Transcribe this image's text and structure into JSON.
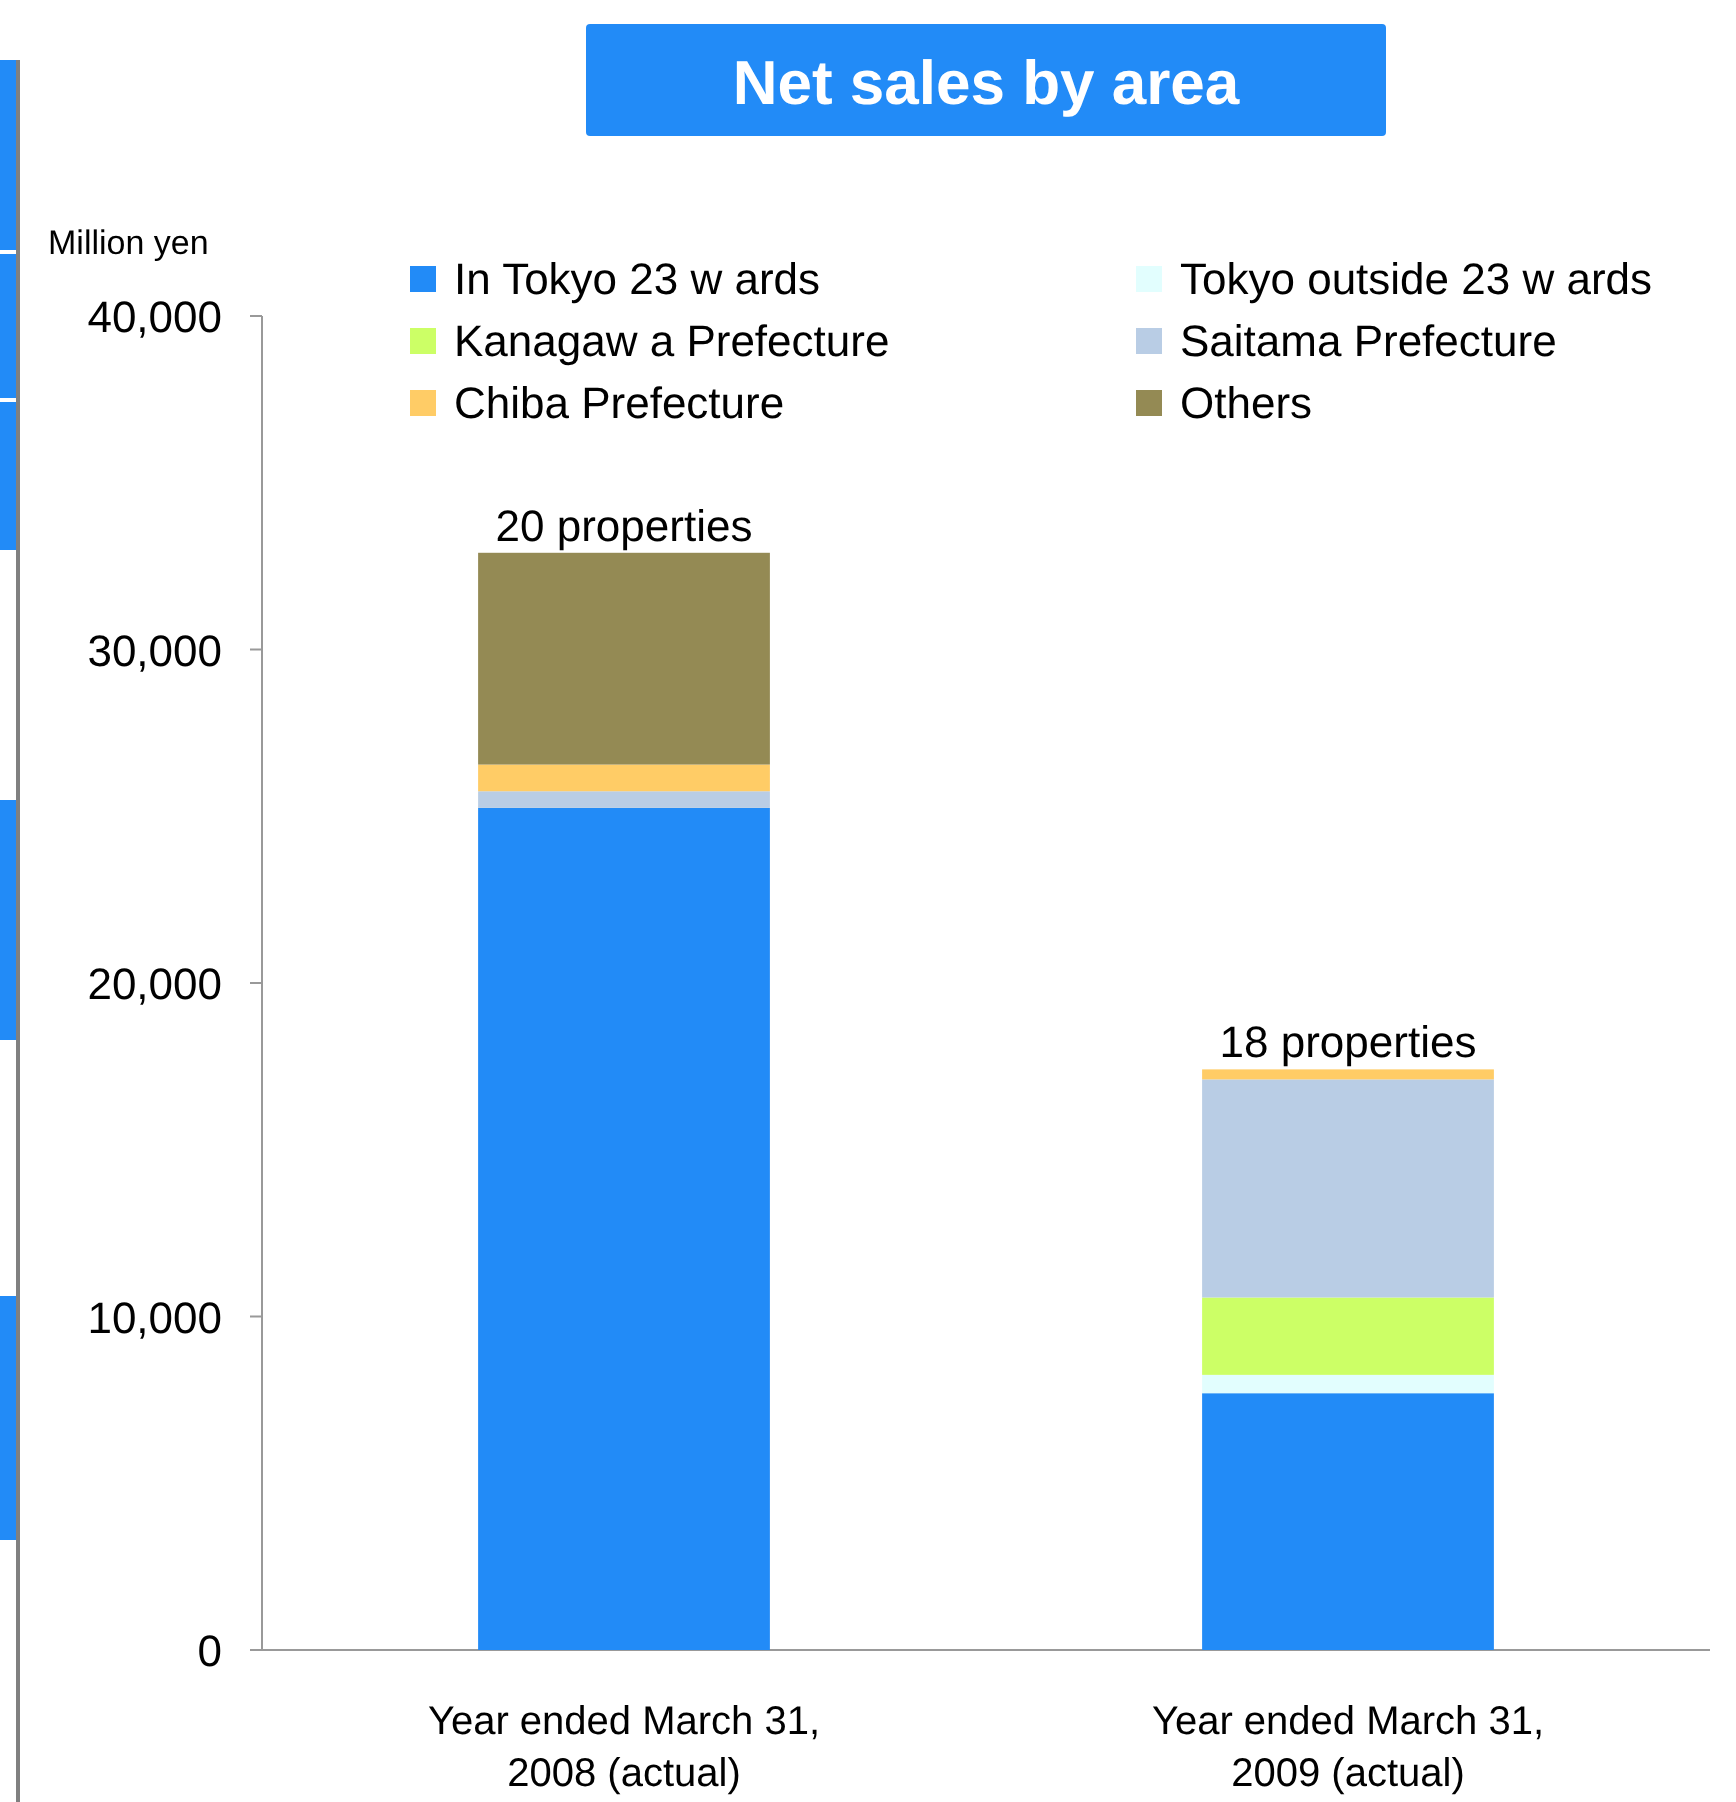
{
  "chart_data": {
    "type": "bar",
    "title": "Net sales by area",
    "ylabel": "Million yen",
    "stacked": true,
    "legend": "top",
    "grid": false,
    "categories": [
      "Year ended March 31, 2008 (actual)",
      "Year ended March 31, 2009 (actual)"
    ],
    "series": [
      {
        "name": "In Tokyo 23 w ards",
        "color": "#228bf7",
        "values": [
          25250,
          7700
        ]
      },
      {
        "name": "Tokyo outside 23 w ards",
        "color": "#e2fefe",
        "values": [
          0,
          550
        ]
      },
      {
        "name": "Kanagaw a Prefecture",
        "color": "#ccff66",
        "values": [
          0,
          2320
        ]
      },
      {
        "name": "Saitama Prefecture",
        "color": "#b9cde5",
        "values": [
          500,
          6540
        ]
      },
      {
        "name": "Chiba Prefecture",
        "color": "#ffcc66",
        "values": [
          800,
          300
        ]
      },
      {
        "name": "Others",
        "color": "#948a54",
        "values": [
          6350,
          0
        ]
      }
    ],
    "annotations": [
      {
        "text": "20 properties",
        "x": "Year ended March 31, 2008 (actual)",
        "y": 32900
      },
      {
        "text": "18 properties",
        "x": "Year ended March 31, 2009 (actual)",
        "y": 17410
      }
    ],
    "ylim": [
      0,
      40000
    ],
    "yticks": [
      {
        "value": 0,
        "label": "0"
      },
      {
        "value": 10000,
        "label": "10,000"
      },
      {
        "value": 20000,
        "label": "20,000"
      },
      {
        "value": 30000,
        "label": "30,000"
      },
      {
        "value": 40000,
        "label": "40,000"
      }
    ]
  }
}
